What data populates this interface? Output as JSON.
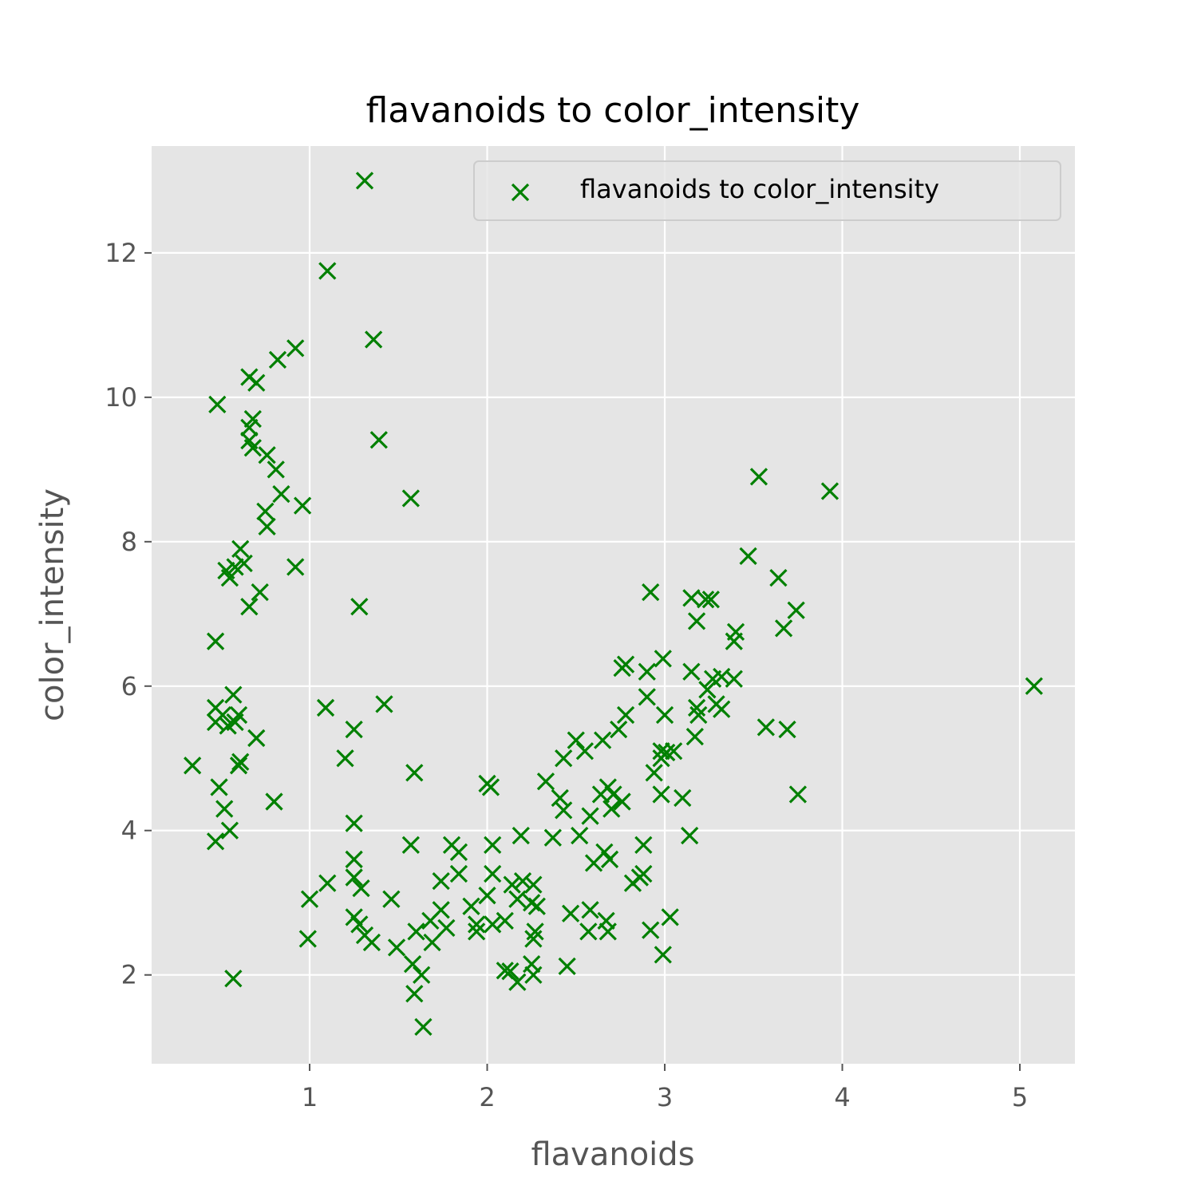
{
  "chart_data": {
    "type": "scatter",
    "title": "flavanoids to color_intensity",
    "xlabel": "flavanoids",
    "ylabel": "color_intensity",
    "xlim": [
      0.11,
      5.31
    ],
    "ylim": [
      0.77,
      13.48
    ],
    "xticks": [
      1,
      2,
      3,
      4,
      5
    ],
    "yticks": [
      2,
      4,
      6,
      8,
      10,
      12
    ],
    "grid": true,
    "legend_position": "top-right",
    "marker": "x",
    "color": "#008000",
    "background": "#E5E5E5",
    "series": [
      {
        "name": "flavanoids to color_intensity",
        "points": [
          [
            1.31,
            13.0
          ],
          [
            1.1,
            11.75
          ],
          [
            1.36,
            10.8
          ],
          [
            0.92,
            10.68
          ],
          [
            0.82,
            10.52
          ],
          [
            0.66,
            10.28
          ],
          [
            0.7,
            10.2
          ],
          [
            0.48,
            9.9
          ],
          [
            0.68,
            9.7
          ],
          [
            0.66,
            9.58
          ],
          [
            0.66,
            9.4
          ],
          [
            1.39,
            9.41
          ],
          [
            0.68,
            9.3
          ],
          [
            0.76,
            9.2
          ],
          [
            0.81,
            9.0
          ],
          [
            3.53,
            8.9
          ],
          [
            3.93,
            8.7
          ],
          [
            0.84,
            8.66
          ],
          [
            1.57,
            8.6
          ],
          [
            0.96,
            8.5
          ],
          [
            0.75,
            8.42
          ],
          [
            0.76,
            8.21
          ],
          [
            0.61,
            7.9
          ],
          [
            3.47,
            7.8
          ],
          [
            0.63,
            7.7
          ],
          [
            0.58,
            7.65
          ],
          [
            0.53,
            7.6
          ],
          [
            0.92,
            7.65
          ],
          [
            0.55,
            7.5
          ],
          [
            3.64,
            7.5
          ],
          [
            0.72,
            7.3
          ],
          [
            2.92,
            7.3
          ],
          [
            3.15,
            7.22
          ],
          [
            3.26,
            7.2
          ],
          [
            3.23,
            7.2
          ],
          [
            1.28,
            7.1
          ],
          [
            0.66,
            7.1
          ],
          [
            3.74,
            7.05
          ],
          [
            3.18,
            6.9
          ],
          [
            3.67,
            6.8
          ],
          [
            3.4,
            6.75
          ],
          [
            3.39,
            6.62
          ],
          [
            0.47,
            6.62
          ],
          [
            2.99,
            6.38
          ],
          [
            2.78,
            6.3
          ],
          [
            2.76,
            6.25
          ],
          [
            2.9,
            6.2
          ],
          [
            3.15,
            6.2
          ],
          [
            3.27,
            6.1
          ],
          [
            3.32,
            6.13
          ],
          [
            3.39,
            6.1
          ],
          [
            5.08,
            6.0
          ],
          [
            3.24,
            5.95
          ],
          [
            0.57,
            5.88
          ],
          [
            2.9,
            5.85
          ],
          [
            3.29,
            5.75
          ],
          [
            3.32,
            5.68
          ],
          [
            1.42,
            5.75
          ],
          [
            1.09,
            5.7
          ],
          [
            3.18,
            5.7
          ],
          [
            0.47,
            5.7
          ],
          [
            0.51,
            5.6
          ],
          [
            0.6,
            5.6
          ],
          [
            3.0,
            5.6
          ],
          [
            2.78,
            5.6
          ],
          [
            3.19,
            5.6
          ],
          [
            0.47,
            5.5
          ],
          [
            0.58,
            5.5
          ],
          [
            0.54,
            5.45
          ],
          [
            3.57,
            5.43
          ],
          [
            3.69,
            5.4
          ],
          [
            1.25,
            5.4
          ],
          [
            2.74,
            5.4
          ],
          [
            0.7,
            5.28
          ],
          [
            3.17,
            5.3
          ],
          [
            2.5,
            5.25
          ],
          [
            2.65,
            5.25
          ],
          [
            2.98,
            5.1
          ],
          [
            3.05,
            5.1
          ],
          [
            3.01,
            5.08
          ],
          [
            2.98,
            5.0
          ],
          [
            2.43,
            5.0
          ],
          [
            2.55,
            5.1
          ],
          [
            1.2,
            5.0
          ],
          [
            0.61,
            4.95
          ],
          [
            0.6,
            4.9
          ],
          [
            0.34,
            4.9
          ],
          [
            2.94,
            4.8
          ],
          [
            1.59,
            4.8
          ],
          [
            2.0,
            4.65
          ],
          [
            2.02,
            4.6
          ],
          [
            0.49,
            4.6
          ],
          [
            2.68,
            4.6
          ],
          [
            2.64,
            4.5
          ],
          [
            2.71,
            4.5
          ],
          [
            2.98,
            4.5
          ],
          [
            3.1,
            4.45
          ],
          [
            3.75,
            4.5
          ],
          [
            2.33,
            4.68
          ],
          [
            2.41,
            4.45
          ],
          [
            0.8,
            4.4
          ],
          [
            2.76,
            4.4
          ],
          [
            2.7,
            4.3
          ],
          [
            2.43,
            4.28
          ],
          [
            0.52,
            4.3
          ],
          [
            2.58,
            4.2
          ],
          [
            1.25,
            4.1
          ],
          [
            0.55,
            4.0
          ],
          [
            2.52,
            3.93
          ],
          [
            3.14,
            3.93
          ],
          [
            2.19,
            3.93
          ],
          [
            2.37,
            3.9
          ],
          [
            0.47,
            3.85
          ],
          [
            1.57,
            3.8
          ],
          [
            1.8,
            3.8
          ],
          [
            2.03,
            3.8
          ],
          [
            2.88,
            3.8
          ],
          [
            1.84,
            3.7
          ],
          [
            2.66,
            3.7
          ],
          [
            2.6,
            3.55
          ],
          [
            2.69,
            3.6
          ],
          [
            1.25,
            3.6
          ],
          [
            2.88,
            3.4
          ],
          [
            2.03,
            3.4
          ],
          [
            1.84,
            3.4
          ],
          [
            2.86,
            3.35
          ],
          [
            1.25,
            3.35
          ],
          [
            1.1,
            3.27
          ],
          [
            2.2,
            3.3
          ],
          [
            1.74,
            3.3
          ],
          [
            2.26,
            3.25
          ],
          [
            2.14,
            3.25
          ],
          [
            2.82,
            3.27
          ],
          [
            1.29,
            3.2
          ],
          [
            2.17,
            3.05
          ],
          [
            1.46,
            3.05
          ],
          [
            1.0,
            3.05
          ],
          [
            2.25,
            3.0
          ],
          [
            2.0,
            3.1
          ],
          [
            2.28,
            2.95
          ],
          [
            1.91,
            2.95
          ],
          [
            1.74,
            2.9
          ],
          [
            2.58,
            2.9
          ],
          [
            2.47,
            2.85
          ],
          [
            1.25,
            2.8
          ],
          [
            1.68,
            2.75
          ],
          [
            2.1,
            2.75
          ],
          [
            3.03,
            2.8
          ],
          [
            1.94,
            2.7
          ],
          [
            2.67,
            2.75
          ],
          [
            1.28,
            2.7
          ],
          [
            2.03,
            2.7
          ],
          [
            1.77,
            2.65
          ],
          [
            2.92,
            2.62
          ],
          [
            1.6,
            2.6
          ],
          [
            2.27,
            2.6
          ],
          [
            2.57,
            2.6
          ],
          [
            1.94,
            2.6
          ],
          [
            2.68,
            2.6
          ],
          [
            1.31,
            2.55
          ],
          [
            2.26,
            2.5
          ],
          [
            0.99,
            2.5
          ],
          [
            1.35,
            2.45
          ],
          [
            1.69,
            2.45
          ],
          [
            1.49,
            2.38
          ],
          [
            2.99,
            2.28
          ],
          [
            1.58,
            2.15
          ],
          [
            2.25,
            2.15
          ],
          [
            2.45,
            2.12
          ],
          [
            2.1,
            2.06
          ],
          [
            2.13,
            2.05
          ],
          [
            1.63,
            2.0
          ],
          [
            2.26,
            2.0
          ],
          [
            0.57,
            1.95
          ],
          [
            2.17,
            1.9
          ],
          [
            1.59,
            1.74
          ],
          [
            1.64,
            1.28
          ]
        ]
      }
    ]
  }
}
